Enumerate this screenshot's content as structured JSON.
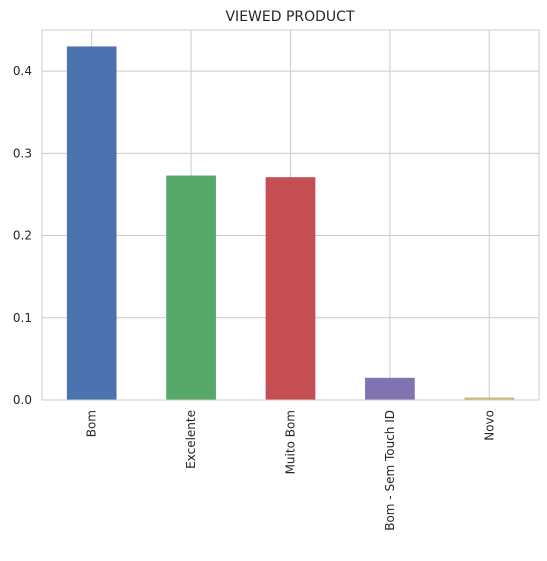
{
  "chart_data": {
    "type": "bar",
    "title": "VIEWED PRODUCT",
    "xlabel": "",
    "ylabel": "",
    "categories": [
      "Bom",
      "Excelente",
      "Muito Bom",
      "Bom - Sem Touch ID",
      "Novo"
    ],
    "values": [
      0.43,
      0.273,
      0.271,
      0.027,
      0.003
    ],
    "colors": [
      "#4c72b0",
      "#55a868",
      "#c44e52",
      "#8172b2",
      "#ccb974"
    ],
    "ylim": [
      0,
      0.45
    ],
    "yticks": [
      0.0,
      0.1,
      0.2,
      0.3,
      0.4
    ],
    "ytick_labels": [
      "0.0",
      "0.1",
      "0.2",
      "0.3",
      "0.4"
    ],
    "grid": true,
    "legend": "none"
  }
}
